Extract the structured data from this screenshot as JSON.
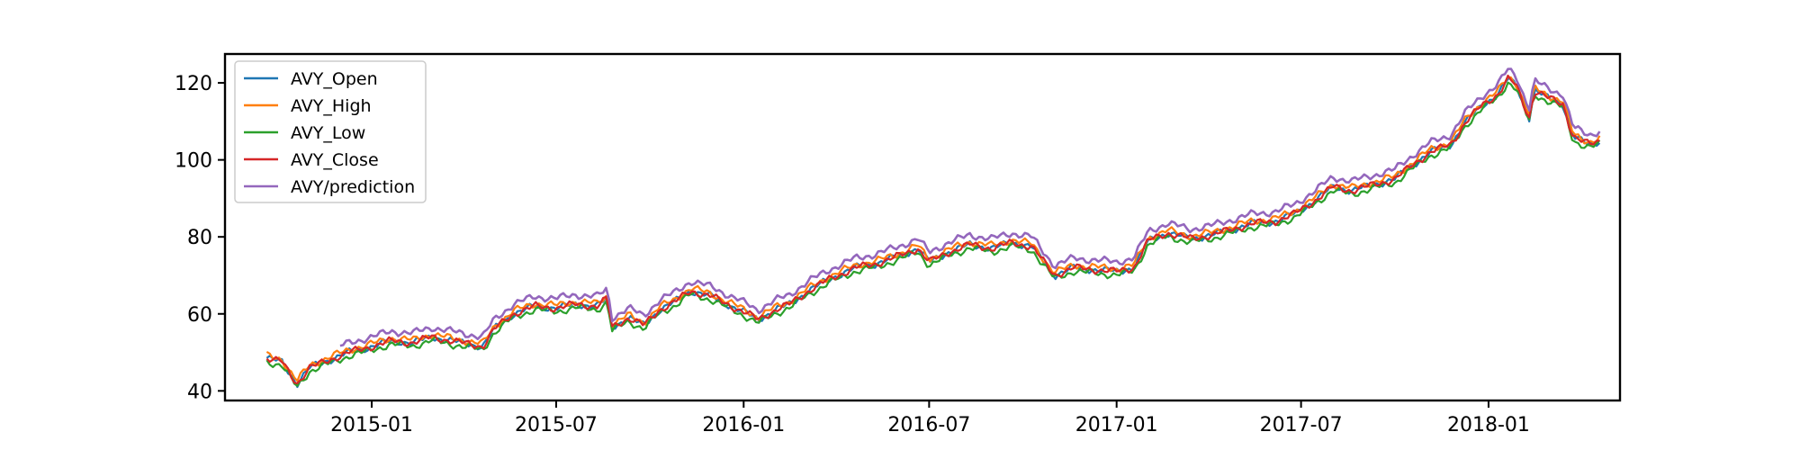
{
  "chart_data": {
    "type": "line",
    "xlim": [
      "2014-08-10",
      "2018-05-10"
    ],
    "ylim": [
      37.5,
      127.5
    ],
    "xticks": [
      "2015-01-01",
      "2015-07-01",
      "2016-01-01",
      "2016-07-01",
      "2017-01-01",
      "2017-07-01",
      "2018-01-01"
    ],
    "xtick_labels": [
      "2015-01",
      "2015-07",
      "2016-01",
      "2016-07",
      "2017-01",
      "2017-07",
      "2018-01"
    ],
    "yticks": [
      40,
      60,
      80,
      100,
      120
    ],
    "ytick_labels": [
      "40",
      "60",
      "80",
      "100",
      "120"
    ],
    "legend_position": "upper-left",
    "colors": [
      "#1f77b4",
      "#ff7f0e",
      "#2ca02c",
      "#d62728",
      "#9467bd"
    ],
    "series": [
      {
        "name": "AVY_Open",
        "color": "#1f77b4",
        "offset": 0.0,
        "start": "2014-09-20"
      },
      {
        "name": "AVY_High",
        "color": "#ff7f0e",
        "offset": 0.7,
        "start": "2014-09-20"
      },
      {
        "name": "AVY_Low",
        "color": "#2ca02c",
        "offset": -0.9,
        "start": "2014-09-20"
      },
      {
        "name": "AVY_Close",
        "color": "#d62728",
        "offset": 0.0,
        "start": "2014-09-20"
      },
      {
        "name": "AVY/prediction",
        "color": "#9467bd",
        "offset": 2.5,
        "start": "2014-12-01"
      }
    ],
    "base": [
      [
        "2014-09-20",
        48.5
      ],
      [
        "2014-10-05",
        47.5
      ],
      [
        "2014-10-15",
        43.5
      ],
      [
        "2014-10-20",
        42.0
      ],
      [
        "2014-11-01",
        46.0
      ],
      [
        "2014-11-20",
        48.0
      ],
      [
        "2014-12-10",
        50.0
      ],
      [
        "2015-01-01",
        51.5
      ],
      [
        "2015-01-20",
        53.0
      ],
      [
        "2015-02-10",
        52.5
      ],
      [
        "2015-03-01",
        54.0
      ],
      [
        "2015-03-20",
        53.0
      ],
      [
        "2015-04-10",
        52.0
      ],
      [
        "2015-04-20",
        51.5
      ],
      [
        "2015-05-01",
        56.0
      ],
      [
        "2015-05-20",
        60.0
      ],
      [
        "2015-06-10",
        62.0
      ],
      [
        "2015-07-01",
        61.5
      ],
      [
        "2015-07-20",
        62.5
      ],
      [
        "2015-08-10",
        62.0
      ],
      [
        "2015-08-20",
        64.0
      ],
      [
        "2015-08-25",
        56.5
      ],
      [
        "2015-09-10",
        59.0
      ],
      [
        "2015-09-25",
        57.0
      ],
      [
        "2015-10-10",
        61.0
      ],
      [
        "2015-10-25",
        63.0
      ],
      [
        "2015-11-10",
        66.0
      ],
      [
        "2015-12-01",
        64.5
      ],
      [
        "2015-12-20",
        62.0
      ],
      [
        "2016-01-05",
        60.0
      ],
      [
        "2016-01-15",
        58.5
      ],
      [
        "2016-02-01",
        61.0
      ],
      [
        "2016-02-15",
        62.5
      ],
      [
        "2016-03-05",
        66.0
      ],
      [
        "2016-03-25",
        69.0
      ],
      [
        "2016-04-20",
        72.0
      ],
      [
        "2016-05-10",
        73.0
      ],
      [
        "2016-06-01",
        75.0
      ],
      [
        "2016-06-20",
        77.0
      ],
      [
        "2016-07-01",
        73.5
      ],
      [
        "2016-07-20",
        76.0
      ],
      [
        "2016-08-10",
        78.0
      ],
      [
        "2016-09-01",
        77.0
      ],
      [
        "2016-09-20",
        78.5
      ],
      [
        "2016-10-10",
        77.5
      ],
      [
        "2016-10-20",
        74.0
      ],
      [
        "2016-11-01",
        70.0
      ],
      [
        "2016-11-20",
        72.0
      ],
      [
        "2016-12-10",
        71.5
      ],
      [
        "2017-01-01",
        71.0
      ],
      [
        "2017-01-18",
        72.0
      ],
      [
        "2017-02-01",
        79.0
      ],
      [
        "2017-02-20",
        81.0
      ],
      [
        "2017-03-15",
        79.5
      ],
      [
        "2017-04-05",
        80.5
      ],
      [
        "2017-04-25",
        82.0
      ],
      [
        "2017-05-15",
        83.5
      ],
      [
        "2017-06-05",
        84.0
      ],
      [
        "2017-06-25",
        86.0
      ],
      [
        "2017-07-15",
        89.5
      ],
      [
        "2017-08-01",
        93.0
      ],
      [
        "2017-08-20",
        92.0
      ],
      [
        "2017-09-10",
        93.5
      ],
      [
        "2017-10-01",
        95.0
      ],
      [
        "2017-10-20",
        99.0
      ],
      [
        "2017-11-05",
        102.0
      ],
      [
        "2017-11-25",
        104.0
      ],
      [
        "2017-12-10",
        110.0
      ],
      [
        "2017-12-25",
        114.0
      ],
      [
        "2018-01-10",
        117.0
      ],
      [
        "2018-01-20",
        121.0
      ],
      [
        "2018-01-28",
        119.5
      ],
      [
        "2018-02-05",
        114.0
      ],
      [
        "2018-02-10",
        111.0
      ],
      [
        "2018-02-15",
        118.0
      ],
      [
        "2018-03-01",
        116.0
      ],
      [
        "2018-03-15",
        114.5
      ],
      [
        "2018-03-25",
        106.0
      ],
      [
        "2018-04-01",
        105.0
      ],
      [
        "2018-04-10",
        104.0
      ],
      [
        "2018-04-20",
        105.0
      ]
    ]
  }
}
